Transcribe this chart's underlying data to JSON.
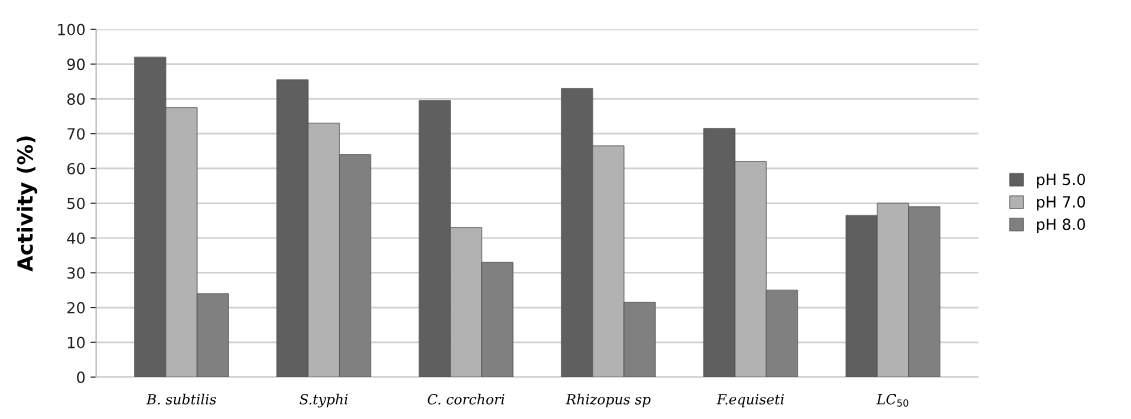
{
  "chart_data": {
    "type": "bar",
    "ylabel": "Activity (%)",
    "categories": [
      "B. subtilis",
      "S.typhi",
      "C. corchori",
      "Rhizopus sp",
      "F.equiseti",
      "LC$_{50}$"
    ],
    "series": [
      {
        "name": "pH 5.0",
        "color": "#5f5f5f",
        "values": [
          92,
          85.5,
          79.5,
          83,
          71.5,
          46.5
        ]
      },
      {
        "name": "pH 7.0",
        "color": "#b2b2b2",
        "values": [
          77.5,
          73,
          43,
          66.5,
          62,
          50
        ]
      },
      {
        "name": "pH 8.0",
        "color": "#808080",
        "values": [
          24,
          64,
          33,
          21.5,
          25,
          49
        ]
      }
    ],
    "ylim": [
      0,
      100
    ],
    "yticks": [
      0,
      10,
      20,
      30,
      40,
      50,
      60,
      70,
      80,
      90,
      100
    ],
    "grid": "y",
    "legend": "right"
  }
}
